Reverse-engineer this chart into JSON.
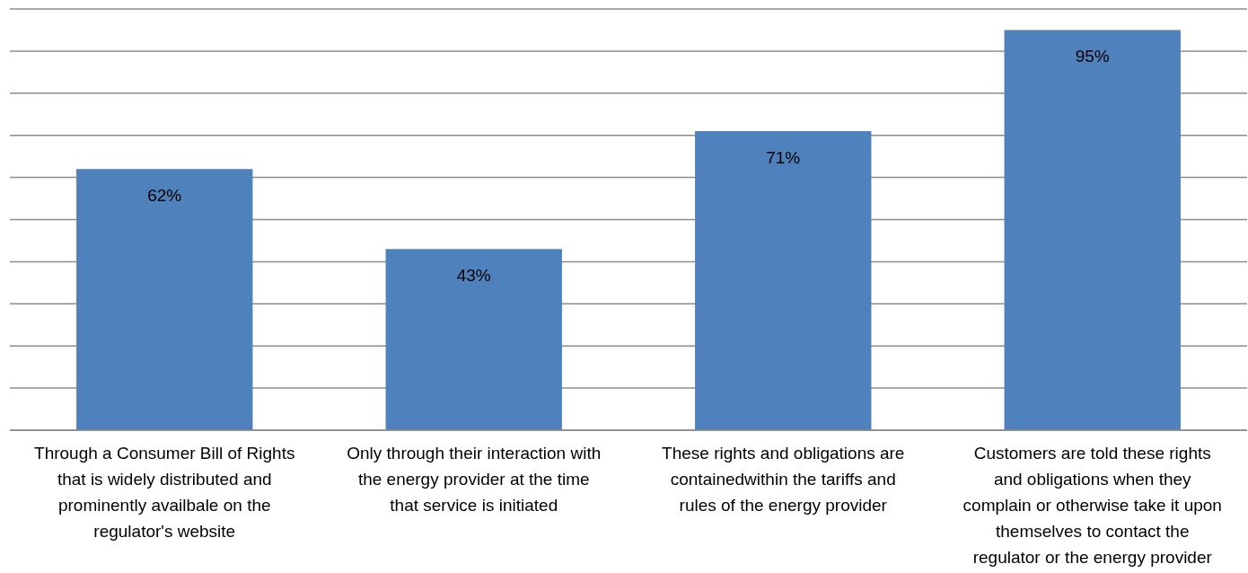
{
  "chart_data": {
    "type": "bar",
    "categories": [
      "Through a Consumer Bill of Rights that is widely distributed and prominently availbale on the regulator's website",
      "Only through their interaction with the energy provider at the time that service is initiated",
      "These rights and obligations are containedwithin the tariffs and rules of the energy provider",
      "Customers are told these rights and obligations when they complain or otherwise take it upon themselves to contact the regulator or the energy provider"
    ],
    "values": [
      62,
      43,
      71,
      95
    ],
    "value_labels": [
      "62%",
      "43%",
      "71%",
      "95%"
    ],
    "color": "#4f81bd",
    "ylim": [
      0,
      100
    ],
    "yticks": [
      {
        "value": 0,
        "label": null
      },
      {
        "value": 10,
        "label": null
      },
      {
        "value": 20,
        "label": null
      },
      {
        "value": 30,
        "label": null
      },
      {
        "value": 40,
        "label": null
      },
      {
        "value": 50,
        "label": null
      },
      {
        "value": 60,
        "label": null
      },
      {
        "value": 70,
        "label": null
      },
      {
        "value": 80,
        "label": null
      },
      {
        "value": 90,
        "label": null
      },
      {
        "value": 100,
        "label": null
      }
    ],
    "grid": "y",
    "tick_labels": "x"
  }
}
